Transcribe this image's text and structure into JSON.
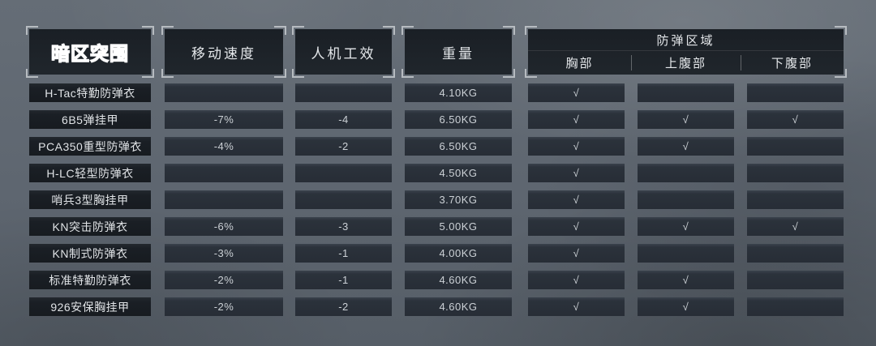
{
  "logo": "暗区突围",
  "headers": {
    "speed": "移动速度",
    "ergonomics": "人机工效",
    "weight": "重量",
    "protection": "防弹区域",
    "zones": {
      "chest": "胸部",
      "upper_abdomen": "上腹部",
      "lower_abdomen": "下腹部"
    }
  },
  "check_symbol": "√",
  "colors": {
    "background": "#5e6670",
    "header_panel": "#1d2228",
    "name_cell": "#1a1f24",
    "value_cell": "#2b323b",
    "bracket": "#b7bcc1",
    "text": "#e4e7ea"
  },
  "rows": [
    {
      "name": "H-Tac特勤防弹衣",
      "speed": "",
      "ergonomics": "",
      "weight": "4.10KG",
      "chest": "√",
      "upper_abdomen": "",
      "lower_abdomen": ""
    },
    {
      "name": "6B5弹挂甲",
      "speed": "-7%",
      "ergonomics": "-4",
      "weight": "6.50KG",
      "chest": "√",
      "upper_abdomen": "√",
      "lower_abdomen": "√"
    },
    {
      "name": "PCA350重型防弹衣",
      "speed": "-4%",
      "ergonomics": "-2",
      "weight": "6.50KG",
      "chest": "√",
      "upper_abdomen": "√",
      "lower_abdomen": ""
    },
    {
      "name": "H-LC轻型防弹衣",
      "speed": "",
      "ergonomics": "",
      "weight": "4.50KG",
      "chest": "√",
      "upper_abdomen": "",
      "lower_abdomen": ""
    },
    {
      "name": "哨兵3型胸挂甲",
      "speed": "",
      "ergonomics": "",
      "weight": "3.70KG",
      "chest": "√",
      "upper_abdomen": "",
      "lower_abdomen": ""
    },
    {
      "name": "KN突击防弹衣",
      "speed": "-6%",
      "ergonomics": "-3",
      "weight": "5.00KG",
      "chest": "√",
      "upper_abdomen": "√",
      "lower_abdomen": "√"
    },
    {
      "name": "KN制式防弹衣",
      "speed": "-3%",
      "ergonomics": "-1",
      "weight": "4.00KG",
      "chest": "√",
      "upper_abdomen": "",
      "lower_abdomen": ""
    },
    {
      "name": "标准特勤防弹衣",
      "speed": "-2%",
      "ergonomics": "-1",
      "weight": "4.60KG",
      "chest": "√",
      "upper_abdomen": "√",
      "lower_abdomen": ""
    },
    {
      "name": "926安保胸挂甲",
      "speed": "-2%",
      "ergonomics": "-2",
      "weight": "4.60KG",
      "chest": "√",
      "upper_abdomen": "√",
      "lower_abdomen": ""
    }
  ]
}
